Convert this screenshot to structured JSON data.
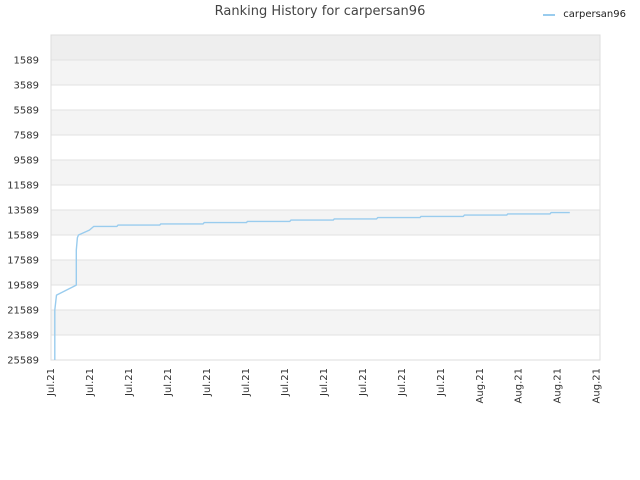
{
  "chart_data": {
    "type": "line",
    "title": "Ranking History for carpersan96",
    "xlabel": "",
    "ylabel": "",
    "legend_position": "top-right",
    "grid": true,
    "y_inverted": true,
    "ylim": [
      25589,
      -411
    ],
    "y_ticks": [
      1589,
      3589,
      5589,
      7589,
      9589,
      11589,
      13589,
      15589,
      17589,
      19589,
      21589,
      23589,
      25589
    ],
    "x_range": [
      0,
      100
    ],
    "x_ticks": [
      {
        "pos": 0,
        "label": "Jul.21"
      },
      {
        "pos": 7.1,
        "label": "Jul.21"
      },
      {
        "pos": 14.2,
        "label": "Jul.21"
      },
      {
        "pos": 21.3,
        "label": "Jul.21"
      },
      {
        "pos": 28.4,
        "label": "Jul.21"
      },
      {
        "pos": 35.5,
        "label": "Jul.21"
      },
      {
        "pos": 42.6,
        "label": "Jul.21"
      },
      {
        "pos": 49.7,
        "label": "Jul.21"
      },
      {
        "pos": 56.8,
        "label": "Jul.21"
      },
      {
        "pos": 63.9,
        "label": "Jul.21"
      },
      {
        "pos": 71.0,
        "label": "Jul.21"
      },
      {
        "pos": 78.1,
        "label": "Aug.21"
      },
      {
        "pos": 85.2,
        "label": "Aug.21"
      },
      {
        "pos": 92.3,
        "label": "Aug.21"
      },
      {
        "pos": 99.4,
        "label": "Aug.21"
      }
    ],
    "series": [
      {
        "name": "carpersan96",
        "color": "#99ccee",
        "points": [
          [
            0.7,
            25589
          ],
          [
            0.7,
            21600
          ],
          [
            1.0,
            20400
          ],
          [
            4.6,
            19600
          ],
          [
            4.6,
            16800
          ],
          [
            4.8,
            15800
          ],
          [
            5.0,
            15589
          ],
          [
            7.0,
            15200
          ],
          [
            7.8,
            14900
          ],
          [
            12.0,
            14900
          ],
          [
            12.2,
            14800
          ],
          [
            19.8,
            14800
          ],
          [
            20.0,
            14700
          ],
          [
            27.7,
            14700
          ],
          [
            27.9,
            14600
          ],
          [
            35.6,
            14600
          ],
          [
            35.8,
            14500
          ],
          [
            43.5,
            14500
          ],
          [
            43.7,
            14400
          ],
          [
            51.4,
            14400
          ],
          [
            51.6,
            14300
          ],
          [
            59.3,
            14300
          ],
          [
            59.5,
            14200
          ],
          [
            67.2,
            14200
          ],
          [
            67.4,
            14100
          ],
          [
            75.1,
            14100
          ],
          [
            75.3,
            14000
          ],
          [
            83.0,
            14000
          ],
          [
            83.2,
            13900
          ],
          [
            90.9,
            13900
          ],
          [
            91.1,
            13800
          ],
          [
            94.5,
            13800
          ]
        ]
      }
    ]
  }
}
